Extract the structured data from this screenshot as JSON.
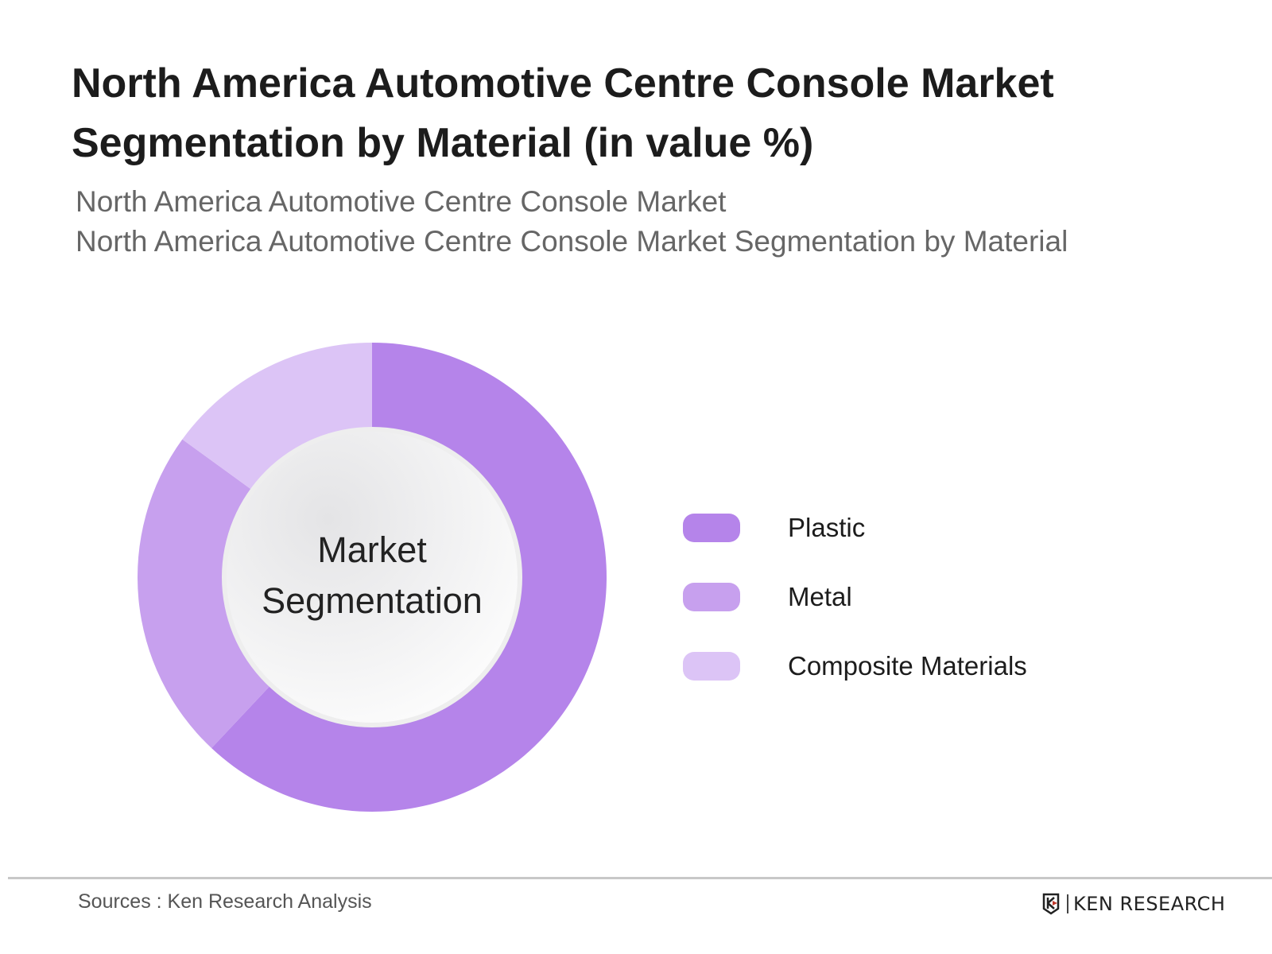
{
  "chart_data": {
    "type": "pie",
    "subtype": "donut",
    "title": "North America Automotive Centre Console Market Segmentation by Material (in value %)",
    "subtitle_lines": [
      "North America Automotive Centre Console Market",
      "North America Automotive Centre Console Market Segmentation by Material"
    ],
    "center_label_lines": [
      "Market",
      "Segmentation"
    ],
    "categories": [
      "Plastic",
      "Metal",
      "Composite Materials"
    ],
    "values": [
      62,
      23,
      15
    ],
    "colors": [
      "#b584ea",
      "#c7a0ee",
      "#dcc4f6"
    ],
    "legend_position": "right"
  },
  "footer": {
    "source": "Sources : Ken Research Analysis",
    "logo_text": "KEN RESEARCH"
  }
}
